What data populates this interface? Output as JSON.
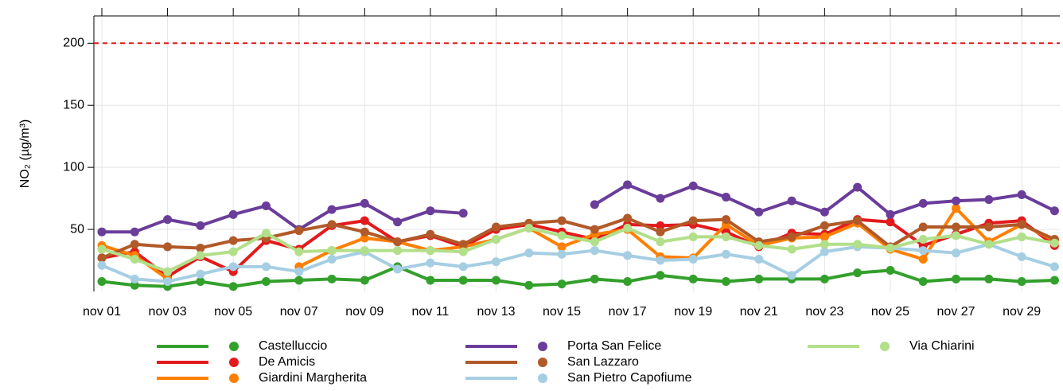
{
  "chart_data": {
    "type": "line",
    "y_label": "NO₂ (µg/m³)",
    "categories": [
      "nov 01",
      null,
      "nov 03",
      null,
      "nov 05",
      null,
      "nov 07",
      null,
      "nov 09",
      null,
      "nov 11",
      null,
      "nov 13",
      null,
      "nov 15",
      null,
      "nov 17",
      null,
      "nov 19",
      null,
      "nov 21",
      null,
      "nov 23",
      null,
      "nov 25",
      null,
      "nov 27",
      null,
      "nov 29",
      null
    ],
    "ylim": [
      0,
      222
    ],
    "yticks": [
      50,
      100,
      150,
      200
    ],
    "grid": true,
    "hline": {
      "value": 200,
      "color": "#e31a1c"
    },
    "series": [
      {
        "name": "Castelluccio",
        "color": "#33a02c",
        "values": [
          8,
          5,
          4,
          8,
          4,
          8,
          9,
          10,
          9,
          20,
          9,
          9,
          9,
          5,
          6,
          10,
          8,
          13,
          10,
          8,
          10,
          10,
          10,
          15,
          17,
          8,
          10,
          10,
          8,
          9
        ]
      },
      {
        "name": "De Amicis",
        "color": "#e31a1c",
        "values": [
          27,
          32,
          12,
          28,
          16,
          41,
          34,
          53,
          57,
          40,
          45,
          36,
          50,
          54,
          48,
          42,
          54,
          53,
          54,
          48,
          36,
          47,
          46,
          58,
          56,
          37,
          46,
          55,
          57,
          37
        ]
      },
      {
        "name": "Giardini Margherita",
        "color": "#ff7f00",
        "values": [
          37,
          29,
          10,
          null,
          null,
          null,
          20,
          33,
          43,
          40,
          33,
          36,
          42,
          51,
          36,
          46,
          50,
          28,
          27,
          54,
          37,
          43,
          44,
          55,
          34,
          26,
          67,
          40,
          54,
          41
        ]
      },
      {
        "name": "Porta San Felice",
        "color": "#6a3d9a",
        "values": [
          48,
          48,
          58,
          53,
          62,
          69,
          50,
          66,
          71,
          56,
          65,
          63,
          null,
          null,
          null,
          70,
          86,
          75,
          85,
          76,
          64,
          73,
          64,
          84,
          62,
          71,
          73,
          74,
          78,
          65
        ]
      },
      {
        "name": "San Lazzaro",
        "color": "#b15928",
        "values": [
          27,
          38,
          36,
          35,
          41,
          43,
          49,
          54,
          48,
          40,
          46,
          38,
          52,
          55,
          57,
          50,
          59,
          48,
          57,
          58,
          40,
          44,
          53,
          57,
          36,
          52,
          52,
          52,
          54,
          42
        ]
      },
      {
        "name": "San Pietro Capofiume",
        "color": "#a6cee3",
        "values": [
          21,
          10,
          8,
          14,
          20,
          20,
          16,
          26,
          32,
          18,
          23,
          20,
          24,
          31,
          30,
          33,
          29,
          25,
          26,
          30,
          26,
          13,
          32,
          36,
          35,
          33,
          31,
          38,
          28,
          20
        ]
      },
      {
        "name": "Via Chiarini",
        "color": "#b2df8a",
        "values": [
          34,
          26,
          16,
          29,
          32,
          47,
          32,
          33,
          33,
          33,
          33,
          32,
          42,
          51,
          45,
          40,
          51,
          40,
          44,
          44,
          37,
          34,
          38,
          38,
          35,
          42,
          45,
          38,
          44,
          39
        ]
      }
    ]
  }
}
